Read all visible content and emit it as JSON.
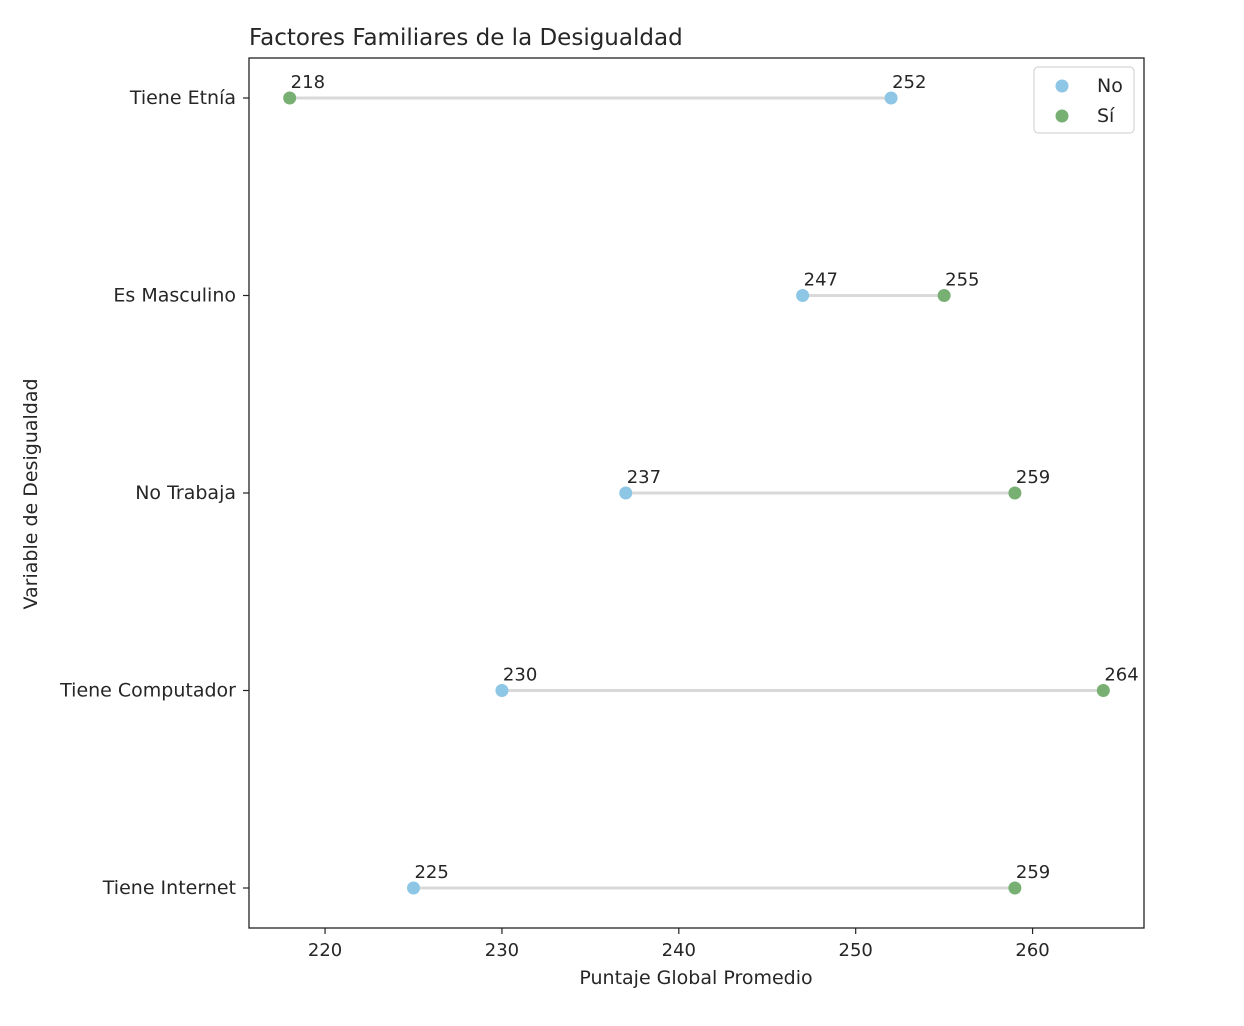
{
  "chart_data": {
    "type": "dumbbell",
    "title": "Factores Familiares de la Desigualdad",
    "xlabel": "Puntaje Global Promedio",
    "ylabel": "Variable de Desigualdad",
    "xlim": [
      215.7,
      266.3
    ],
    "xticks": [
      220,
      230,
      240,
      250,
      260
    ],
    "grid": false,
    "legend_position": "top-right",
    "categories": [
      "Tiene Etnía",
      "Es Masculino",
      "No Trabaja",
      "Tiene Computador",
      "Tiene Internet"
    ],
    "series": [
      {
        "name": "No",
        "color": "#8ec6e6",
        "values": [
          252,
          247,
          237,
          230,
          225
        ]
      },
      {
        "name": "Sí",
        "color": "#77b072",
        "values": [
          218,
          255,
          259,
          264,
          259
        ]
      }
    ],
    "connector_color": "#d9d9d9"
  }
}
